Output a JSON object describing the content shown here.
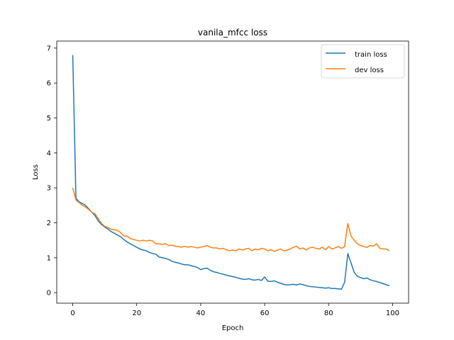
{
  "chart_data": {
    "type": "line",
    "title": "vanila_mfcc loss",
    "xlabel": "Epoch",
    "ylabel": "Loss",
    "xlim": [
      -5,
      105
    ],
    "ylim": [
      -0.3,
      7.2
    ],
    "xticks": [
      0,
      20,
      40,
      60,
      80,
      100
    ],
    "yticks": [
      0,
      1,
      2,
      3,
      4,
      5,
      6,
      7
    ],
    "grid": false,
    "legend_position": "top-right",
    "series": [
      {
        "name": "train loss",
        "color": "#1f77b4",
        "x": [
          0,
          1,
          2,
          3,
          4,
          5,
          6,
          7,
          8,
          9,
          10,
          11,
          12,
          13,
          14,
          15,
          16,
          17,
          18,
          19,
          20,
          21,
          22,
          23,
          24,
          25,
          26,
          27,
          28,
          29,
          30,
          31,
          32,
          33,
          34,
          35,
          36,
          37,
          38,
          39,
          40,
          41,
          42,
          43,
          44,
          45,
          46,
          47,
          48,
          49,
          50,
          51,
          52,
          53,
          54,
          55,
          56,
          57,
          58,
          59,
          60,
          61,
          62,
          63,
          64,
          65,
          66,
          67,
          68,
          69,
          70,
          71,
          72,
          73,
          74,
          75,
          76,
          77,
          78,
          79,
          80,
          81,
          82,
          83,
          84,
          85,
          86,
          87,
          88,
          89,
          90,
          91,
          92,
          93,
          94,
          95,
          96,
          97,
          98,
          99
        ],
        "y": [
          6.8,
          2.7,
          2.6,
          2.55,
          2.5,
          2.4,
          2.3,
          2.2,
          2.05,
          1.95,
          1.88,
          1.82,
          1.75,
          1.7,
          1.65,
          1.6,
          1.52,
          1.45,
          1.4,
          1.35,
          1.3,
          1.25,
          1.22,
          1.2,
          1.15,
          1.12,
          1.1,
          1.02,
          1.0,
          0.98,
          0.95,
          0.9,
          0.87,
          0.85,
          0.82,
          0.8,
          0.8,
          0.77,
          0.75,
          0.72,
          0.66,
          0.69,
          0.7,
          0.64,
          0.6,
          0.58,
          0.55,
          0.53,
          0.5,
          0.48,
          0.46,
          0.44,
          0.41,
          0.39,
          0.38,
          0.4,
          0.37,
          0.36,
          0.38,
          0.35,
          0.45,
          0.33,
          0.32,
          0.34,
          0.3,
          0.27,
          0.24,
          0.22,
          0.23,
          0.24,
          0.22,
          0.25,
          0.23,
          0.2,
          0.18,
          0.17,
          0.16,
          0.15,
          0.14,
          0.13,
          0.14,
          0.12,
          0.12,
          0.11,
          0.1,
          0.3,
          1.12,
          0.85,
          0.58,
          0.47,
          0.43,
          0.4,
          0.42,
          0.37,
          0.34,
          0.32,
          0.29,
          0.26,
          0.23,
          0.2
        ]
      },
      {
        "name": "dev loss",
        "color": "#ff7f0e",
        "x": [
          0,
          1,
          2,
          3,
          4,
          5,
          6,
          7,
          8,
          9,
          10,
          11,
          12,
          13,
          14,
          15,
          16,
          17,
          18,
          19,
          20,
          21,
          22,
          23,
          24,
          25,
          26,
          27,
          28,
          29,
          30,
          31,
          32,
          33,
          34,
          35,
          36,
          37,
          38,
          39,
          40,
          41,
          42,
          43,
          44,
          45,
          46,
          47,
          48,
          49,
          50,
          51,
          52,
          53,
          54,
          55,
          56,
          57,
          58,
          59,
          60,
          61,
          62,
          63,
          64,
          65,
          66,
          67,
          68,
          69,
          70,
          71,
          72,
          73,
          74,
          75,
          76,
          77,
          78,
          79,
          80,
          81,
          82,
          83,
          84,
          85,
          86,
          87,
          88,
          89,
          90,
          91,
          92,
          93,
          94,
          95,
          96,
          97,
          98,
          99
        ],
        "y": [
          3.0,
          2.65,
          2.58,
          2.5,
          2.45,
          2.38,
          2.3,
          2.25,
          2.12,
          1.98,
          1.9,
          1.86,
          1.82,
          1.8,
          1.78,
          1.72,
          1.62,
          1.62,
          1.55,
          1.52,
          1.5,
          1.48,
          1.5,
          1.48,
          1.5,
          1.48,
          1.4,
          1.4,
          1.38,
          1.4,
          1.35,
          1.36,
          1.33,
          1.32,
          1.3,
          1.33,
          1.3,
          1.32,
          1.3,
          1.28,
          1.3,
          1.32,
          1.35,
          1.3,
          1.28,
          1.28,
          1.25,
          1.27,
          1.23,
          1.2,
          1.22,
          1.2,
          1.25,
          1.22,
          1.25,
          1.27,
          1.2,
          1.25,
          1.23,
          1.27,
          1.25,
          1.2,
          1.23,
          1.18,
          1.22,
          1.25,
          1.2,
          1.22,
          1.25,
          1.3,
          1.33,
          1.25,
          1.28,
          1.22,
          1.28,
          1.3,
          1.27,
          1.25,
          1.3,
          1.23,
          1.32,
          1.25,
          1.28,
          1.32,
          1.27,
          1.32,
          1.98,
          1.62,
          1.5,
          1.4,
          1.35,
          1.32,
          1.3,
          1.35,
          1.33,
          1.4,
          1.27,
          1.25,
          1.25,
          1.2
        ]
      }
    ]
  }
}
